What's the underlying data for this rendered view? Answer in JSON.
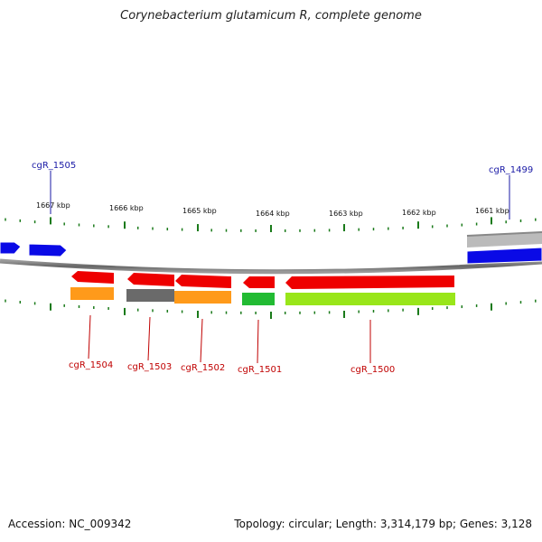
{
  "title": "Corynebacterium glutamicum R, complete genome",
  "footer": {
    "accession": "Accession: NC_009342",
    "summary": "Topology: circular; Length: 3,314,179 bp; Genes: 3,128"
  },
  "scale_labels": [
    "1667 kbp",
    "1666 kbp",
    "1665 kbp",
    "1664 kbp",
    "1663 kbp",
    "1662 kbp",
    "1661 kbp"
  ],
  "gene_labels": [
    {
      "text": "cgR_1505",
      "strand": "forward",
      "color": "#1a1aa6"
    },
    {
      "text": "cgR_1499",
      "strand": "forward",
      "color": "#1a1aa6"
    },
    {
      "text": "cgR_1504",
      "strand": "reverse",
      "color": "#c00000"
    },
    {
      "text": "cgR_1503",
      "strand": "reverse",
      "color": "#c00000"
    },
    {
      "text": "cgR_1502",
      "strand": "reverse",
      "color": "#c00000"
    },
    {
      "text": "cgR_1501",
      "strand": "reverse",
      "color": "#c00000"
    },
    {
      "text": "cgR_1500",
      "strand": "reverse",
      "color": "#c00000"
    }
  ],
  "colors": {
    "forward_gene": "#0a0ae6",
    "reverse_gene": "#ee0000",
    "backbone": "#777777",
    "tick": "#1a7a1a",
    "cog_orange": "#ff9a1a",
    "cog_gray": "#6a6a6a",
    "cog_green": "#22bb33",
    "cog_lime": "#99e61a",
    "cog_light_gray": "#bbbbbb"
  }
}
